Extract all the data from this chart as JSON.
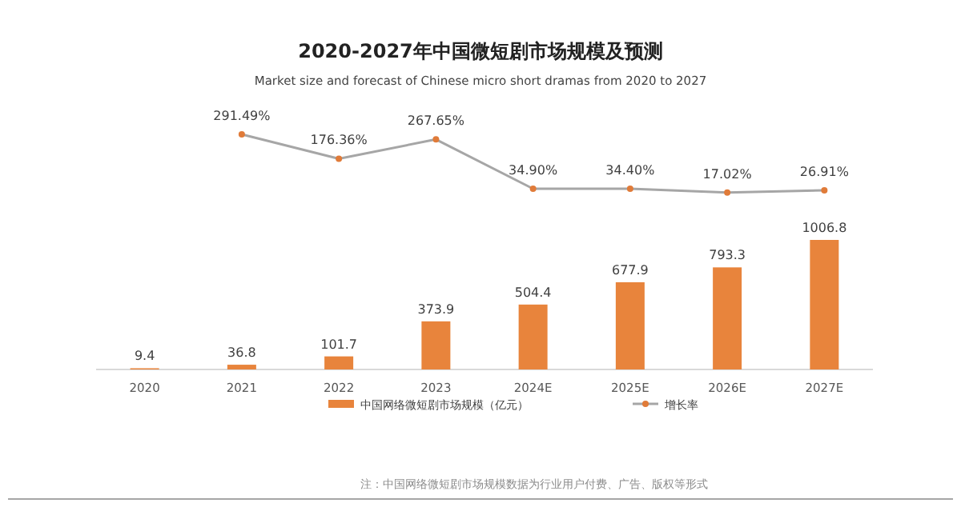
{
  "chart_data": [
    {
      "type": "line",
      "title": "2020-2027年中国微短剧市场规模及预测",
      "subtitle": "Market size and forecast of Chinese micro short dramas from 2020 to 2027",
      "categories": [
        "2021",
        "2022",
        "2023",
        "2024E",
        "2025E",
        "2026E",
        "2027E"
      ],
      "series": [
        {
          "name": "增长率",
          "color": "#a6a6a6",
          "colors": [
            "#e07b39",
            "#e07b39",
            "#e07b39",
            "#e07b39",
            "#e07b39",
            "#e07b39",
            "#e07b39"
          ],
          "values": [
            291.49,
            176.36,
            267.65,
            34.9,
            34.4,
            17.02,
            26.91
          ],
          "value_labels": [
            "291.49%",
            "176.36%",
            "267.65%",
            "34.90%",
            "34.40%",
            "17.02%",
            "26.91%"
          ]
        }
      ],
      "tick_labels": false,
      "legend": "bottom",
      "marker": "circle"
    },
    {
      "type": "bar",
      "annotations": [
        "注：中国网络微短剧市场规模数据为行业用户付费、广告、版权等形式"
      ],
      "categories": [
        "2020",
        "2021",
        "2022",
        "2023",
        "2024E",
        "2025E",
        "2026E",
        "2027E"
      ],
      "series": [
        {
          "name": "中国网络微短剧市场规模（亿元）",
          "color": "#e8843c",
          "values": [
            9.4,
            36.8,
            101.7,
            373.9,
            504.4,
            677.9,
            793.3,
            1006.8
          ],
          "value_labels": [
            "9.4",
            "36.8",
            "101.7",
            "373.9",
            "504.4",
            "677.9",
            "793.3",
            "1006.8"
          ]
        }
      ],
      "ylim": [
        0,
        1006.8
      ],
      "tick_labels": "x",
      "legend": "bottom"
    }
  ]
}
